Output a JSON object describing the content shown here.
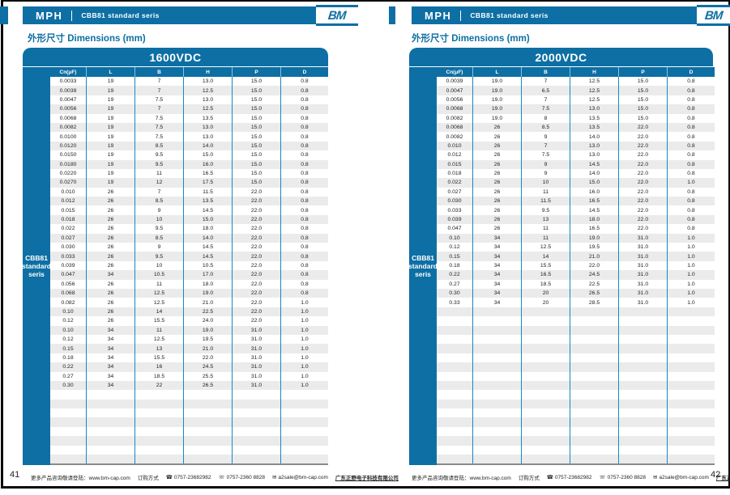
{
  "document_title": "CBB81 standard seris - Dimensions datasheet spread",
  "footer": {
    "visit_text": "更多产品咨询敬请登陆：www.bm-cap.com",
    "order_label": "订购方式",
    "phone_icon": "☎",
    "phone1": "0757-23682982",
    "fax_icon": "☏",
    "phone2": "0757-2360 8828",
    "mail_icon": "✉",
    "email": "a2sale@bm-cap.com",
    "company": "广东正野电子科技有限公司"
  },
  "pages": [
    {
      "page_number": "41",
      "header": {
        "brand": "MPH",
        "product": "CBB81 standard seris",
        "logo_text": "BM"
      },
      "section_title": "外形尺寸 Dimensions (mm)",
      "table": {
        "title": "1600VDC",
        "sidebar_label_lines": [
          "CBB81",
          "standard",
          "seris"
        ],
        "columns": [
          "Cn(μF)",
          "L",
          "B",
          "H",
          "P",
          "D"
        ],
        "rows": [
          [
            "0.0033",
            "19",
            "7",
            "13.0",
            "15.0",
            "0.8"
          ],
          [
            "0.0039",
            "19",
            "7",
            "12.5",
            "15.0",
            "0.8"
          ],
          [
            "0.0047",
            "19",
            "7.5",
            "13.0",
            "15.0",
            "0.8"
          ],
          [
            "0.0056",
            "19",
            "7",
            "12.5",
            "15.0",
            "0.8"
          ],
          [
            "0.0068",
            "19",
            "7.5",
            "13.5",
            "15.0",
            "0.8"
          ],
          [
            "0.0082",
            "19",
            "7.5",
            "13.0",
            "15.0",
            "0.8"
          ],
          [
            "0.0100",
            "19",
            "7.5",
            "13.0",
            "15.0",
            "0.8"
          ],
          [
            "0.0120",
            "19",
            "8.5",
            "14.0",
            "15.0",
            "0.8"
          ],
          [
            "0.0150",
            "19",
            "9.5",
            "15.0",
            "15.0",
            "0.8"
          ],
          [
            "0.0180",
            "19",
            "9.5",
            "16.0",
            "15.0",
            "0.8"
          ],
          [
            "0.0220",
            "19",
            "11",
            "16.5",
            "15.0",
            "0.8"
          ],
          [
            "0.0270",
            "19",
            "12",
            "17.5",
            "15.0",
            "0.8"
          ],
          [
            "0.010",
            "26",
            "7",
            "11.5",
            "22.0",
            "0.8"
          ],
          [
            "0.012",
            "26",
            "8.5",
            "13.5",
            "22.0",
            "0.8"
          ],
          [
            "0.015",
            "26",
            "9",
            "14.5",
            "22.0",
            "0.8"
          ],
          [
            "0.018",
            "26",
            "10",
            "15.0",
            "22.0",
            "0.8"
          ],
          [
            "0.022",
            "26",
            "9.5",
            "18.0",
            "22.0",
            "0.8"
          ],
          [
            "0.027",
            "26",
            "8.5",
            "14.0",
            "22.0",
            "0.8"
          ],
          [
            "0.030",
            "26",
            "9",
            "14.5",
            "22.0",
            "0.8"
          ],
          [
            "0.033",
            "26",
            "9.5",
            "14.5",
            "22.0",
            "0.8"
          ],
          [
            "0.039",
            "26",
            "10",
            "10.5",
            "22.0",
            "0.8"
          ],
          [
            "0.047",
            "34",
            "10.5",
            "17.0",
            "22.0",
            "0.8"
          ],
          [
            "0.056",
            "26",
            "11",
            "18.0",
            "22.0",
            "0.8"
          ],
          [
            "0.068",
            "26",
            "12.5",
            "19.0",
            "22.0",
            "0.8"
          ],
          [
            "0.082",
            "26",
            "12.5",
            "21.0",
            "22.0",
            "1.0"
          ],
          [
            "0.10",
            "26",
            "14",
            "22.5",
            "22.0",
            "1.0"
          ],
          [
            "0.12",
            "26",
            "15.5",
            "24.0",
            "22.0",
            "1.0"
          ],
          [
            "0.10",
            "34",
            "11",
            "19.0",
            "31.0",
            "1.0"
          ],
          [
            "0.12",
            "34",
            "12.5",
            "19.5",
            "31.0",
            "1.0"
          ],
          [
            "0.15",
            "34",
            "13",
            "21.0",
            "31.0",
            "1.0"
          ],
          [
            "0.18",
            "34",
            "15.5",
            "22.0",
            "31.0",
            "1.0"
          ],
          [
            "0.22",
            "34",
            "16",
            "24.5",
            "31.0",
            "1.0"
          ],
          [
            "0.27",
            "34",
            "18.5",
            "25.5",
            "31.0",
            "1.0"
          ],
          [
            "0.30",
            "34",
            "22",
            "26.5",
            "31.0",
            "1.0"
          ]
        ],
        "empty_rows": 8
      }
    },
    {
      "page_number": "42",
      "header": {
        "brand": "MPH",
        "product": "CBB81  standard  seris",
        "logo_text": "BM"
      },
      "section_title": "外形尺寸 Dimensions (mm)",
      "table": {
        "title": "2000VDC",
        "sidebar_label_lines": [
          "CBB81",
          "standard",
          "seris"
        ],
        "columns": [
          "Cn(μF)",
          "L",
          "B",
          "H",
          "P",
          "D"
        ],
        "rows": [
          [
            "0.0039",
            "19.0",
            "7",
            "12.5",
            "15.0",
            "0.8"
          ],
          [
            "0.0047",
            "19.0",
            "6.5",
            "12.5",
            "15.0",
            "0.8"
          ],
          [
            "0.0056",
            "19.0",
            "7",
            "12.5",
            "15.0",
            "0.8"
          ],
          [
            "0.0068",
            "19.0",
            "7.5",
            "13.0",
            "15.0",
            "0.8"
          ],
          [
            "0.0082",
            "19.0",
            "8",
            "13.5",
            "15.0",
            "0.8"
          ],
          [
            "0.0068",
            "26",
            "8.5",
            "13.5",
            "22.0",
            "0.8"
          ],
          [
            "0.0082",
            "26",
            "9",
            "14.0",
            "22.0",
            "0.8"
          ],
          [
            "0.010",
            "26",
            "7",
            "13.0",
            "22.0",
            "0.8"
          ],
          [
            "0.012",
            "26",
            "7.5",
            "13.0",
            "22.0",
            "0.8"
          ],
          [
            "0.015",
            "26",
            "9",
            "14.5",
            "22.0",
            "0.8"
          ],
          [
            "0.018",
            "26",
            "9",
            "14.0",
            "22.0",
            "0.8"
          ],
          [
            "0.022",
            "26",
            "10",
            "15.0",
            "22.0",
            "1.0"
          ],
          [
            "0.027",
            "26",
            "11",
            "16.0",
            "22.0",
            "0.8"
          ],
          [
            "0.030",
            "26",
            "11.5",
            "16.5",
            "22.0",
            "0.8"
          ],
          [
            "0.033",
            "26",
            "9.5",
            "14.5",
            "22.0",
            "0.8"
          ],
          [
            "0.039",
            "26",
            "13",
            "18.0",
            "22.0",
            "0.8"
          ],
          [
            "0.047",
            "26",
            "11",
            "16.5",
            "22.0",
            "0.8"
          ],
          [
            "0.10",
            "34",
            "11",
            "19.0",
            "31.0",
            "1.0"
          ],
          [
            "0.12",
            "34",
            "12.5",
            "19.5",
            "31.0",
            "1.0"
          ],
          [
            "0.15",
            "34",
            "14",
            "21.0",
            "31.0",
            "1.0"
          ],
          [
            "0.18",
            "34",
            "15.5",
            "22.0",
            "31.0",
            "1.0"
          ],
          [
            "0.22",
            "34",
            "16.5",
            "24.5",
            "31.0",
            "1.0"
          ],
          [
            "0.27",
            "34",
            "18.5",
            "22.5",
            "31.0",
            "1.0"
          ],
          [
            "0.30",
            "34",
            "20",
            "26.5",
            "31.0",
            "1.0"
          ],
          [
            "0.33",
            "34",
            "20",
            "28.5",
            "31.0",
            "1.0"
          ]
        ],
        "empty_rows": 17
      }
    }
  ]
}
